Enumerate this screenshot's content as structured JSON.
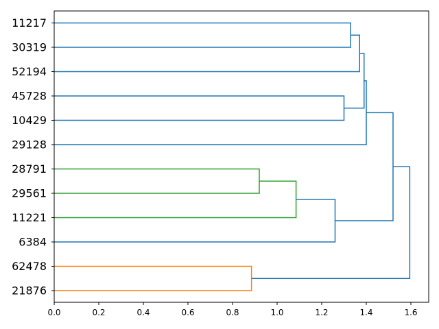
{
  "chart_data": {
    "type": "dendrogram",
    "orientation": "left",
    "leaves": [
      "11217",
      "30319",
      "52194",
      "45728",
      "10429",
      "29128",
      "28791",
      "29561",
      "11221",
      "6384",
      "62478",
      "21876"
    ],
    "xlim": [
      0.0,
      1.68
    ],
    "xticks": [
      "0.0",
      "0.2",
      "0.4",
      "0.6",
      "0.8",
      "1.0",
      "1.2",
      "1.4",
      "1.6"
    ],
    "grid": false,
    "merges": [
      {
        "left": "11217",
        "right": "30319",
        "height": 1.33,
        "color": "#1f77b4"
      },
      {
        "left": "45728",
        "right": "10429",
        "height": 1.3,
        "color": "#1f77b4"
      },
      {
        "left": "28791",
        "right": "29561",
        "height": 0.92,
        "color": "#2ca02c"
      },
      {
        "left": "62478",
        "right": "21876",
        "height": 0.885,
        "color": "#ff7f0e"
      },
      {
        "left": 2,
        "right": "11221",
        "height": 1.085,
        "color": "#2ca02c"
      },
      {
        "left": 0,
        "right": "52194",
        "height": 1.37,
        "color": "#1f77b4"
      },
      {
        "left": 4,
        "right": "6384",
        "height": 1.26,
        "color": "#1f77b4"
      },
      {
        "left": 5,
        "right": 1,
        "height": 1.39,
        "color": "#1f77b4"
      },
      {
        "left": 7,
        "right": "29128",
        "height": 1.4,
        "color": "#1f77b4"
      },
      {
        "left": 8,
        "right": 6,
        "height": 1.52,
        "color": "#1f77b4"
      },
      {
        "left": 9,
        "right": 3,
        "height": 1.595,
        "color": "#1f77b4"
      }
    ]
  }
}
